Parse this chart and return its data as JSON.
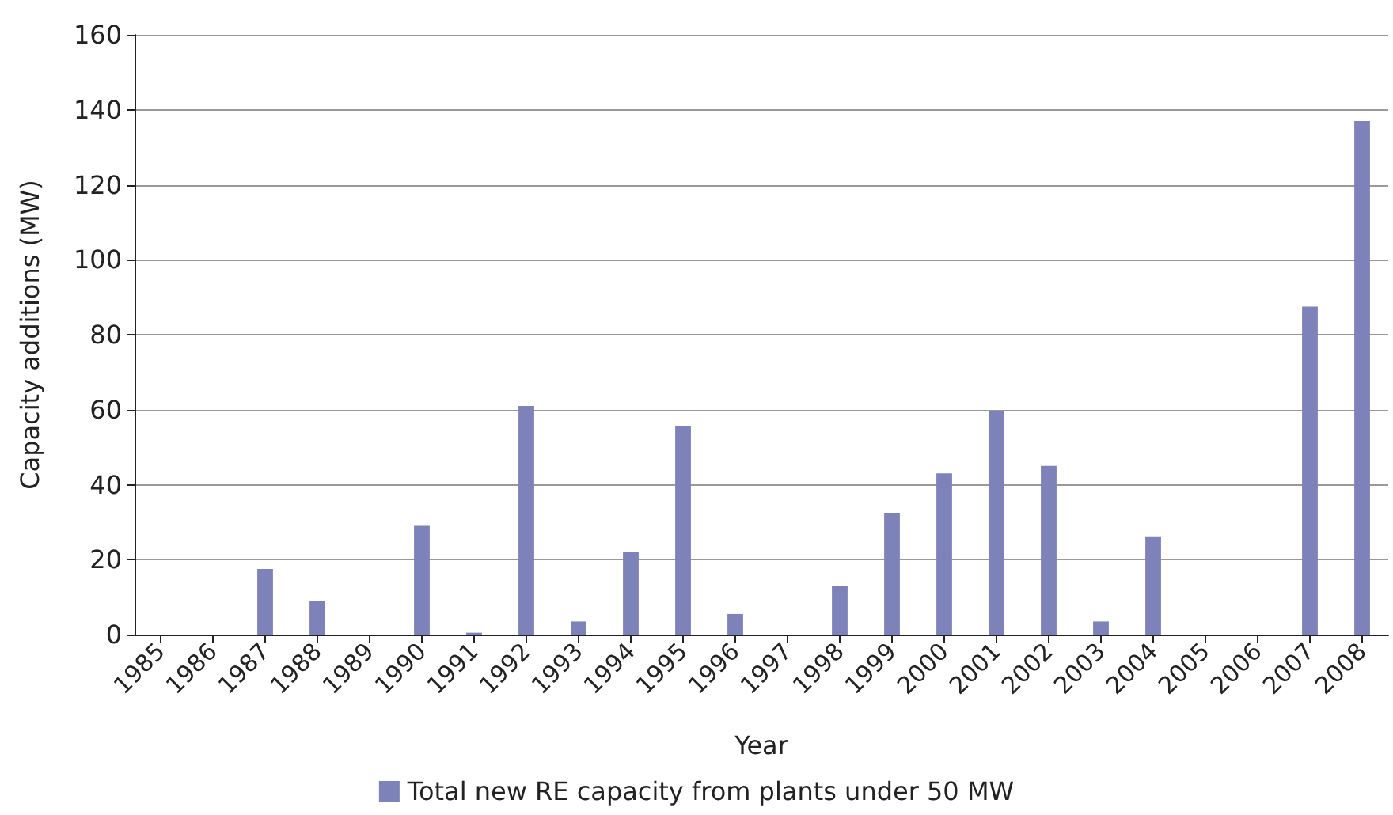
{
  "chart_data": {
    "type": "bar",
    "xlabel": "Year",
    "ylabel": "Capacity additions (MW)",
    "categories": [
      "1985",
      "1986",
      "1987",
      "1988",
      "1989",
      "1990",
      "1991",
      "1992",
      "1993",
      "1994",
      "1995",
      "1996",
      "1997",
      "1998",
      "1999",
      "2000",
      "2001",
      "2002",
      "2003",
      "2004",
      "2005",
      "2006",
      "2007",
      "2008"
    ],
    "series": [
      {
        "name": "Total new RE capacity from plants under 50 MW",
        "color": "#7d82b8",
        "values": [
          0,
          0,
          17.5,
          9,
          0,
          29,
          0.5,
          61,
          3.5,
          22,
          55.5,
          5.5,
          0,
          13,
          32.5,
          43,
          59.5,
          45,
          3.5,
          26,
          0,
          0,
          87.5,
          137
        ]
      }
    ],
    "ylim": [
      0,
      160
    ],
    "yticks": [
      0,
      20,
      40,
      60,
      80,
      100,
      120,
      140,
      160
    ],
    "grid": "y",
    "legend": "bottom"
  }
}
